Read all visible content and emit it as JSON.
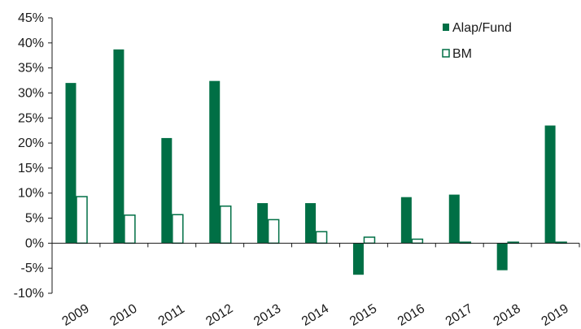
{
  "chart_data": {
    "type": "bar",
    "title": "",
    "xlabel": "",
    "ylabel": "",
    "categories": [
      "2009",
      "2010",
      "2011",
      "2012",
      "2013",
      "2014",
      "2015",
      "2016",
      "2017",
      "2018",
      "2019"
    ],
    "series": [
      {
        "name": "Alap/Fund",
        "color": "#006f45",
        "values": [
          32.0,
          38.7,
          21.0,
          32.4,
          8.0,
          8.0,
          -6.3,
          9.2,
          9.7,
          -5.4,
          23.5
        ]
      },
      {
        "name": "BM",
        "color": "#ffffff",
        "values": [
          9.3,
          5.6,
          5.7,
          7.4,
          4.7,
          2.3,
          1.2,
          0.8,
          0.2,
          0.2,
          0.2
        ]
      }
    ],
    "ylim": [
      -10,
      45
    ],
    "yticks": [
      "45%",
      "40%",
      "35%",
      "30%",
      "25%",
      "20%",
      "15%",
      "10%",
      "5%",
      "0%",
      "-5%",
      "-10%"
    ],
    "grid": false,
    "legend": "top-right",
    "accent_color": "#006f45"
  }
}
